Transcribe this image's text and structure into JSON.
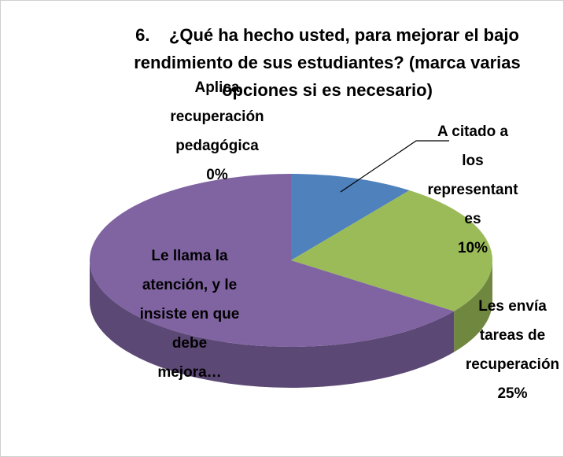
{
  "chart_data": {
    "type": "pie",
    "title": "6.    ¿Qué ha hecho usted, para mejorar el bajo rendimiento de sus estudiantes? (marca varias opciones si es necesario)",
    "categories": [
      "A citado a los representantes",
      "Les envía tareas de recuperación",
      "Le llama la atención, y le insiste en que debe mejora…",
      "Aplica recuperación pedagógica"
    ],
    "values": [
      10,
      25,
      65,
      0
    ],
    "value_labels": [
      "10%",
      "25%",
      null,
      "0%"
    ],
    "colors": [
      "#4f81bd",
      "#9bbb59",
      "#8064a2",
      "#c0504d"
    ],
    "three_d": true
  }
}
